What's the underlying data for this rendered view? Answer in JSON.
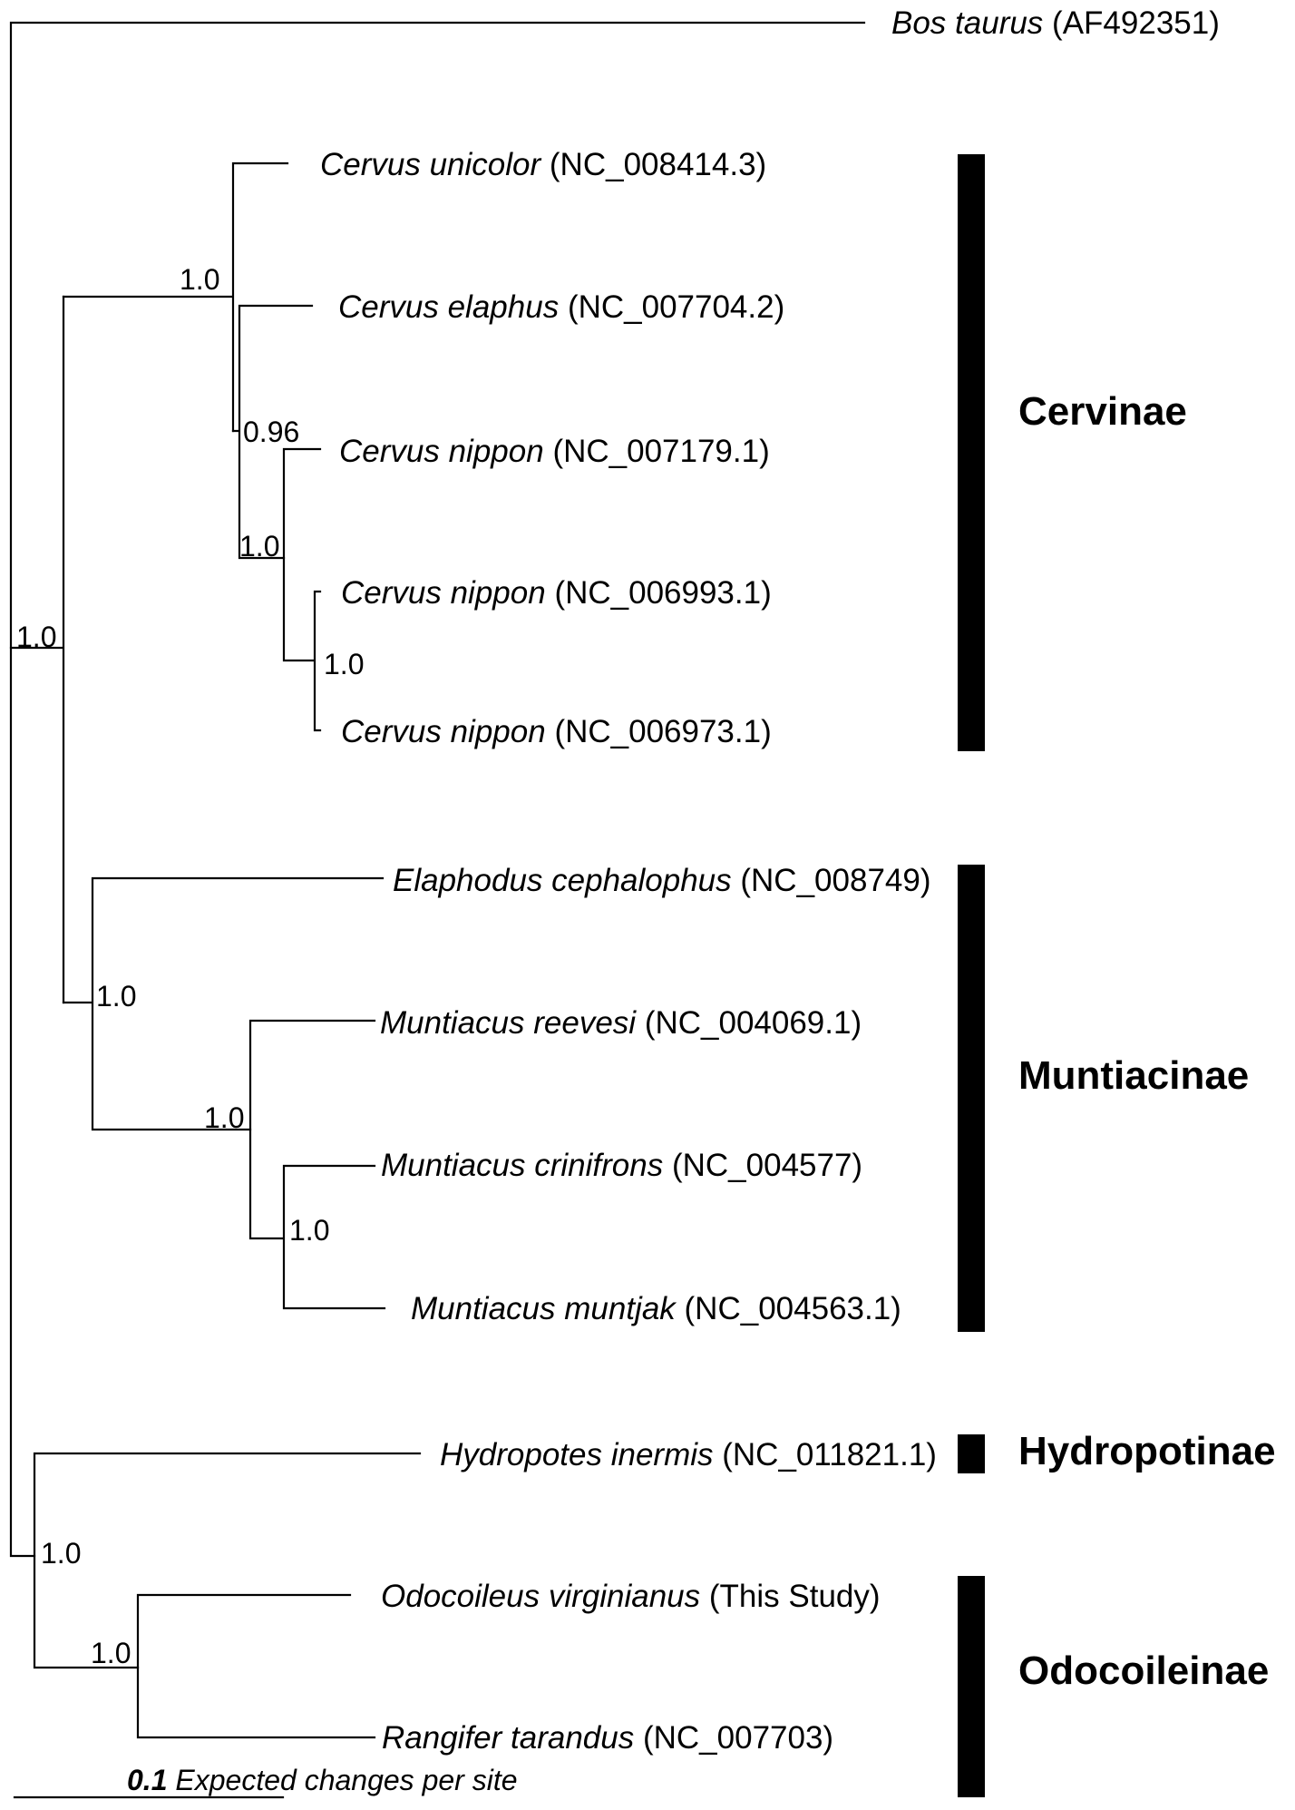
{
  "taxa": [
    {
      "species": "Bos taurus",
      "accession": "(AF492351)"
    },
    {
      "species": "Cervus unicolor",
      "accession": "(NC_008414.3)"
    },
    {
      "species": "Cervus elaphus",
      "accession": "(NC_007704.2)"
    },
    {
      "species": "Cervus nippon",
      "accession": "(NC_007179.1)"
    },
    {
      "species": "Cervus nippon",
      "accession": "(NC_006993.1)"
    },
    {
      "species": "Cervus nippon",
      "accession": "(NC_006973.1)"
    },
    {
      "species": "Elaphodus cephalophus",
      "accession": "(NC_008749)"
    },
    {
      "species": "Muntiacus reevesi",
      "accession": "(NC_004069.1)"
    },
    {
      "species": "Muntiacus crinifrons",
      "accession": "(NC_004577)"
    },
    {
      "species": "Muntiacus muntjak",
      "accession": "(NC_004563.1)"
    },
    {
      "species": "Hydropotes inermis",
      "accession": "(NC_011821.1)"
    },
    {
      "species": "Odocoileus virginianus",
      "accession": "(This Study)"
    },
    {
      "species": "Rangifer tarandus",
      "accession": "(NC_007703)"
    }
  ],
  "support_values": [
    "1.0",
    "0.96",
    "1.0",
    "1.0",
    "1.0",
    "1.0",
    "1.0",
    "1.0",
    "1.0",
    "1.0"
  ],
  "clades": [
    "Cervinae",
    "Muntiacinae",
    "Hydropotinae",
    "Odocoileinae"
  ],
  "scale": {
    "value": "0.1",
    "label": "Expected changes per site"
  },
  "colors": {
    "line": "#000000",
    "background": "#ffffff"
  }
}
